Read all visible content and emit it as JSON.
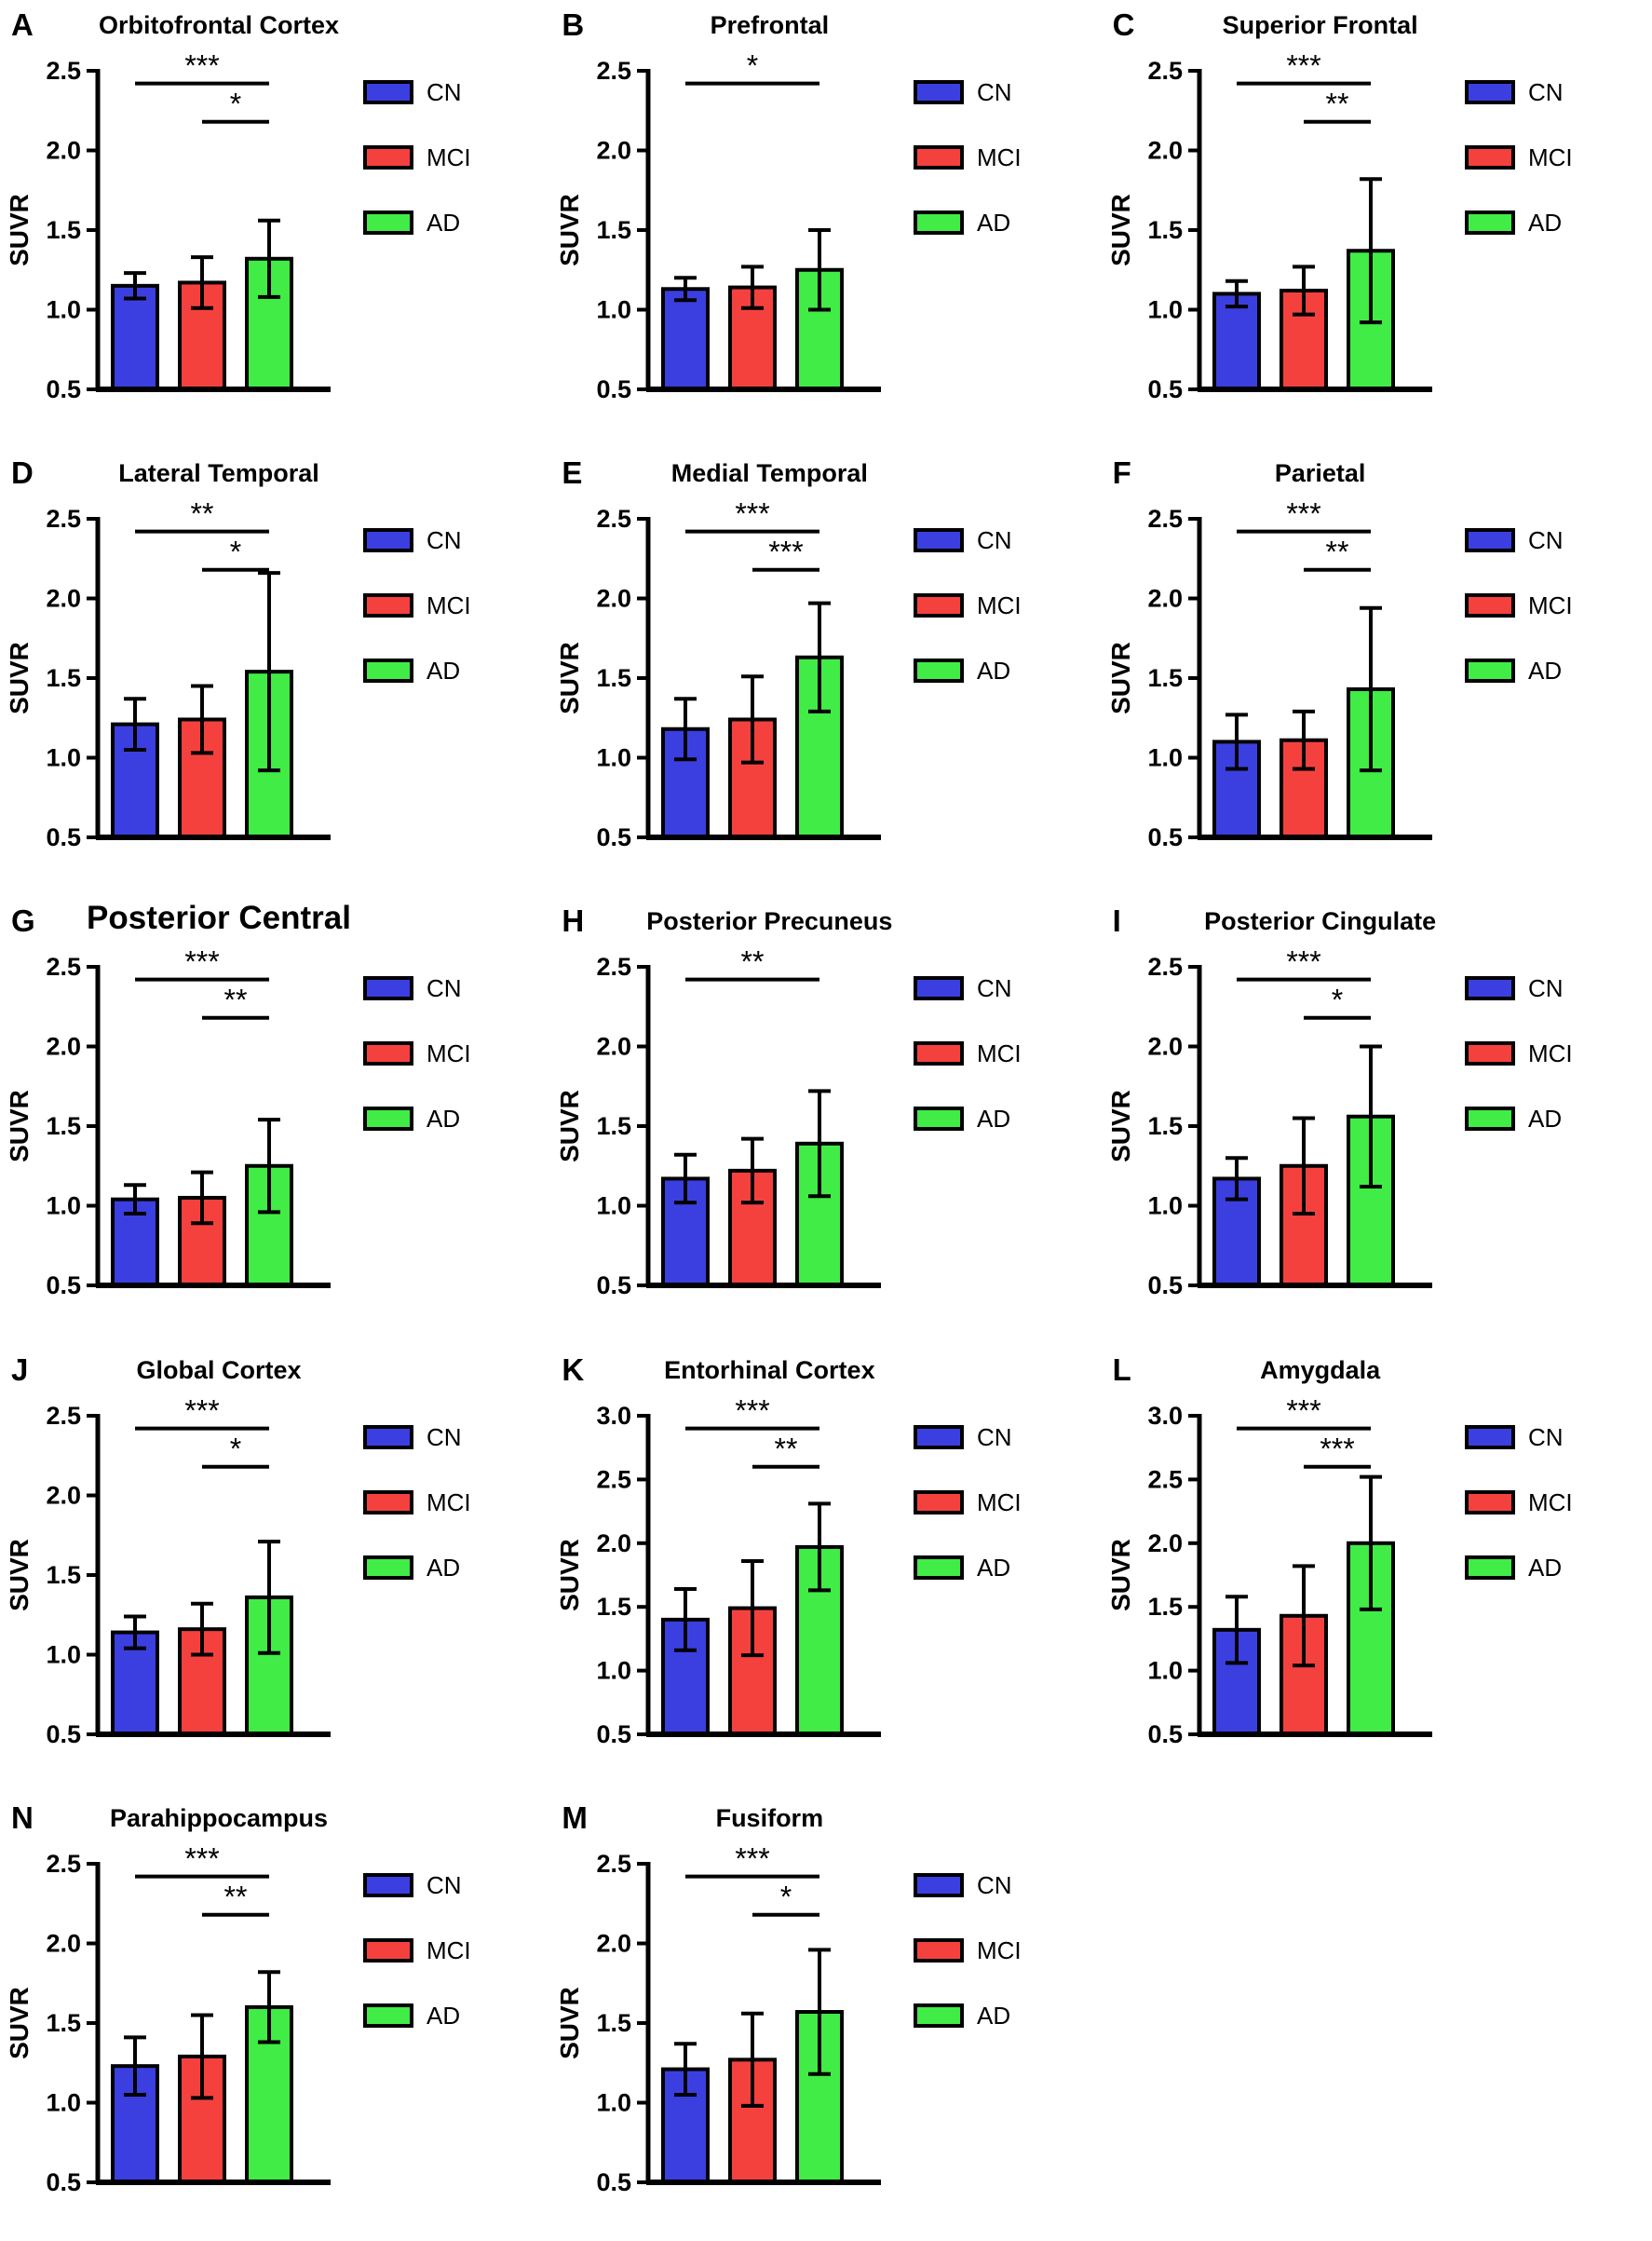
{
  "figure": {
    "background": "#ffffff",
    "axis_color": "#000000",
    "ylabel": "SUVR",
    "legend_labels": [
      "CN",
      "MCI",
      "AD"
    ],
    "bar_colors": {
      "CN": "#3B3FE0",
      "MCI": "#F5413E",
      "AD": "#40EC45"
    }
  },
  "chart_data": [
    {
      "type": "bar",
      "panel": "A",
      "title": "Orbitofrontal Cortex",
      "title_large": false,
      "xlabel": "",
      "ylabel": "SUVR",
      "ylim": [
        0.5,
        2.5
      ],
      "yticks": [
        "0.5",
        "1.0",
        "1.5",
        "2.0",
        "2.5"
      ],
      "categories": [
        "CN",
        "MCI",
        "AD"
      ],
      "values": [
        1.15,
        1.17,
        1.32
      ],
      "errors": [
        0.08,
        0.16,
        0.24
      ],
      "legend": [
        "CN",
        "MCI",
        "AD"
      ],
      "grid": false,
      "legend_position": "right",
      "significance": [
        {
          "a": "CN",
          "b": "AD",
          "label": "***"
        },
        {
          "a": "MCI",
          "b": "AD",
          "label": "*"
        }
      ]
    },
    {
      "type": "bar",
      "panel": "B",
      "title": "Prefrontal",
      "title_large": false,
      "xlabel": "",
      "ylabel": "SUVR",
      "ylim": [
        0.5,
        2.5
      ],
      "yticks": [
        "0.5",
        "1.0",
        "1.5",
        "2.0",
        "2.5"
      ],
      "categories": [
        "CN",
        "MCI",
        "AD"
      ],
      "values": [
        1.13,
        1.14,
        1.25
      ],
      "errors": [
        0.07,
        0.13,
        0.25
      ],
      "legend": [
        "CN",
        "MCI",
        "AD"
      ],
      "grid": false,
      "legend_position": "right",
      "significance": [
        {
          "a": "CN",
          "b": "AD",
          "label": "*"
        }
      ]
    },
    {
      "type": "bar",
      "panel": "C",
      "title": "Superior Frontal",
      "title_large": false,
      "xlabel": "",
      "ylabel": "SUVR",
      "ylim": [
        0.5,
        2.5
      ],
      "yticks": [
        "0.5",
        "1.0",
        "1.5",
        "2.0",
        "2.5"
      ],
      "categories": [
        "CN",
        "MCI",
        "AD"
      ],
      "values": [
        1.1,
        1.12,
        1.37
      ],
      "errors": [
        0.08,
        0.15,
        0.45
      ],
      "legend": [
        "CN",
        "MCI",
        "AD"
      ],
      "grid": false,
      "legend_position": "right",
      "significance": [
        {
          "a": "CN",
          "b": "AD",
          "label": "***"
        },
        {
          "a": "MCI",
          "b": "AD",
          "label": "**"
        }
      ]
    },
    {
      "type": "bar",
      "panel": "D",
      "title": "Lateral Temporal",
      "title_large": false,
      "xlabel": "",
      "ylabel": "SUVR",
      "ylim": [
        0.5,
        2.5
      ],
      "yticks": [
        "0.5",
        "1.0",
        "1.5",
        "2.0",
        "2.5"
      ],
      "categories": [
        "CN",
        "MCI",
        "AD"
      ],
      "values": [
        1.21,
        1.24,
        1.54
      ],
      "errors": [
        0.16,
        0.21,
        0.62
      ],
      "legend": [
        "CN",
        "MCI",
        "AD"
      ],
      "grid": false,
      "legend_position": "right",
      "significance": [
        {
          "a": "CN",
          "b": "AD",
          "label": "**"
        },
        {
          "a": "MCI",
          "b": "AD",
          "label": "*"
        }
      ]
    },
    {
      "type": "bar",
      "panel": "E",
      "title": "Medial Temporal",
      "title_large": false,
      "xlabel": "",
      "ylabel": "SUVR",
      "ylim": [
        0.5,
        2.5
      ],
      "yticks": [
        "0.5",
        "1.0",
        "1.5",
        "2.0",
        "2.5"
      ],
      "categories": [
        "CN",
        "MCI",
        "AD"
      ],
      "values": [
        1.18,
        1.24,
        1.63
      ],
      "errors": [
        0.19,
        0.27,
        0.34
      ],
      "legend": [
        "CN",
        "MCI",
        "AD"
      ],
      "grid": false,
      "legend_position": "right",
      "significance": [
        {
          "a": "CN",
          "b": "AD",
          "label": "***"
        },
        {
          "a": "MCI",
          "b": "AD",
          "label": "***"
        }
      ]
    },
    {
      "type": "bar",
      "panel": "F",
      "title": "Parietal",
      "title_large": false,
      "xlabel": "",
      "ylabel": "SUVR",
      "ylim": [
        0.5,
        2.5
      ],
      "yticks": [
        "0.5",
        "1.0",
        "1.5",
        "2.0",
        "2.5"
      ],
      "categories": [
        "CN",
        "MCI",
        "AD"
      ],
      "values": [
        1.1,
        1.11,
        1.43
      ],
      "errors": [
        0.17,
        0.18,
        0.51
      ],
      "legend": [
        "CN",
        "MCI",
        "AD"
      ],
      "grid": false,
      "legend_position": "right",
      "significance": [
        {
          "a": "CN",
          "b": "AD",
          "label": "***"
        },
        {
          "a": "MCI",
          "b": "AD",
          "label": "**"
        }
      ]
    },
    {
      "type": "bar",
      "panel": "G",
      "title": "Posterior Central",
      "title_large": true,
      "xlabel": "",
      "ylabel": "SUVR",
      "ylim": [
        0.5,
        2.5
      ],
      "yticks": [
        "0.5",
        "1.0",
        "1.5",
        "2.0",
        "2.5"
      ],
      "categories": [
        "CN",
        "MCI",
        "AD"
      ],
      "values": [
        1.04,
        1.05,
        1.25
      ],
      "errors": [
        0.09,
        0.16,
        0.29
      ],
      "legend": [
        "CN",
        "MCI",
        "AD"
      ],
      "grid": false,
      "legend_position": "right",
      "significance": [
        {
          "a": "CN",
          "b": "AD",
          "label": "***"
        },
        {
          "a": "MCI",
          "b": "AD",
          "label": "**"
        }
      ]
    },
    {
      "type": "bar",
      "panel": "H",
      "title": "Posterior Precuneus",
      "title_large": false,
      "xlabel": "",
      "ylabel": "SUVR",
      "ylim": [
        0.5,
        2.5
      ],
      "yticks": [
        "0.5",
        "1.0",
        "1.5",
        "2.0",
        "2.5"
      ],
      "categories": [
        "CN",
        "MCI",
        "AD"
      ],
      "values": [
        1.17,
        1.22,
        1.39
      ],
      "errors": [
        0.15,
        0.2,
        0.33
      ],
      "legend": [
        "CN",
        "MCI",
        "AD"
      ],
      "grid": false,
      "legend_position": "right",
      "significance": [
        {
          "a": "CN",
          "b": "AD",
          "label": "**"
        }
      ]
    },
    {
      "type": "bar",
      "panel": "I",
      "title": "Posterior Cingulate",
      "title_large": false,
      "xlabel": "",
      "ylabel": "SUVR",
      "ylim": [
        0.5,
        2.5
      ],
      "yticks": [
        "0.5",
        "1.0",
        "1.5",
        "2.0",
        "2.5"
      ],
      "categories": [
        "CN",
        "MCI",
        "AD"
      ],
      "values": [
        1.17,
        1.25,
        1.56
      ],
      "errors": [
        0.13,
        0.3,
        0.44
      ],
      "legend": [
        "CN",
        "MCI",
        "AD"
      ],
      "grid": false,
      "legend_position": "right",
      "significance": [
        {
          "a": "CN",
          "b": "AD",
          "label": "***"
        },
        {
          "a": "MCI",
          "b": "AD",
          "label": "*"
        }
      ]
    },
    {
      "type": "bar",
      "panel": "J",
      "title": "Global Cortex",
      "title_large": false,
      "xlabel": "",
      "ylabel": "SUVR",
      "ylim": [
        0.5,
        2.5
      ],
      "yticks": [
        "0.5",
        "1.0",
        "1.5",
        "2.0",
        "2.5"
      ],
      "categories": [
        "CN",
        "MCI",
        "AD"
      ],
      "values": [
        1.14,
        1.16,
        1.36
      ],
      "errors": [
        0.1,
        0.16,
        0.35
      ],
      "legend": [
        "CN",
        "MCI",
        "AD"
      ],
      "grid": false,
      "legend_position": "right",
      "significance": [
        {
          "a": "CN",
          "b": "AD",
          "label": "***"
        },
        {
          "a": "MCI",
          "b": "AD",
          "label": "*"
        }
      ]
    },
    {
      "type": "bar",
      "panel": "K",
      "title": "Entorhinal Cortex",
      "title_large": false,
      "xlabel": "",
      "ylabel": "SUVR",
      "ylim": [
        0.5,
        3.0
      ],
      "yticks": [
        "0.5",
        "1.0",
        "1.5",
        "2.0",
        "2.5",
        "3.0"
      ],
      "categories": [
        "CN",
        "MCI",
        "AD"
      ],
      "values": [
        1.4,
        1.49,
        1.97
      ],
      "errors": [
        0.24,
        0.37,
        0.34
      ],
      "legend": [
        "CN",
        "MCI",
        "AD"
      ],
      "grid": false,
      "legend_position": "right",
      "significance": [
        {
          "a": "CN",
          "b": "AD",
          "label": "***"
        },
        {
          "a": "MCI",
          "b": "AD",
          "label": "**"
        }
      ]
    },
    {
      "type": "bar",
      "panel": "L",
      "title": "Amygdala",
      "title_large": false,
      "xlabel": "",
      "ylabel": "SUVR",
      "ylim": [
        0.5,
        3.0
      ],
      "yticks": [
        "0.5",
        "1.0",
        "1.5",
        "2.0",
        "2.5",
        "3.0"
      ],
      "categories": [
        "CN",
        "MCI",
        "AD"
      ],
      "values": [
        1.32,
        1.43,
        2.0
      ],
      "errors": [
        0.26,
        0.39,
        0.52
      ],
      "legend": [
        "CN",
        "MCI",
        "AD"
      ],
      "grid": false,
      "legend_position": "right",
      "significance": [
        {
          "a": "CN",
          "b": "AD",
          "label": "***"
        },
        {
          "a": "MCI",
          "b": "AD",
          "label": "***"
        }
      ]
    },
    {
      "type": "bar",
      "panel": "N",
      "title": "Parahippocampus",
      "title_large": false,
      "xlabel": "",
      "ylabel": "SUVR",
      "ylim": [
        0.5,
        2.5
      ],
      "yticks": [
        "0.5",
        "1.0",
        "1.5",
        "2.0",
        "2.5"
      ],
      "categories": [
        "CN",
        "MCI",
        "AD"
      ],
      "values": [
        1.23,
        1.29,
        1.6
      ],
      "errors": [
        0.18,
        0.26,
        0.22
      ],
      "legend": [
        "CN",
        "MCI",
        "AD"
      ],
      "grid": false,
      "legend_position": "right",
      "significance": [
        {
          "a": "CN",
          "b": "AD",
          "label": "***"
        },
        {
          "a": "MCI",
          "b": "AD",
          "label": "**"
        }
      ]
    },
    {
      "type": "bar",
      "panel": "M",
      "title": "Fusiform",
      "title_large": false,
      "xlabel": "",
      "ylabel": "SUVR",
      "ylim": [
        0.5,
        2.5
      ],
      "yticks": [
        "0.5",
        "1.0",
        "1.5",
        "2.0",
        "2.5"
      ],
      "categories": [
        "CN",
        "MCI",
        "AD"
      ],
      "values": [
        1.21,
        1.27,
        1.57
      ],
      "errors": [
        0.16,
        0.29,
        0.39
      ],
      "legend": [
        "CN",
        "MCI",
        "AD"
      ],
      "grid": false,
      "legend_position": "right",
      "significance": [
        {
          "a": "CN",
          "b": "AD",
          "label": "***"
        },
        {
          "a": "MCI",
          "b": "AD",
          "label": "*"
        }
      ]
    }
  ]
}
